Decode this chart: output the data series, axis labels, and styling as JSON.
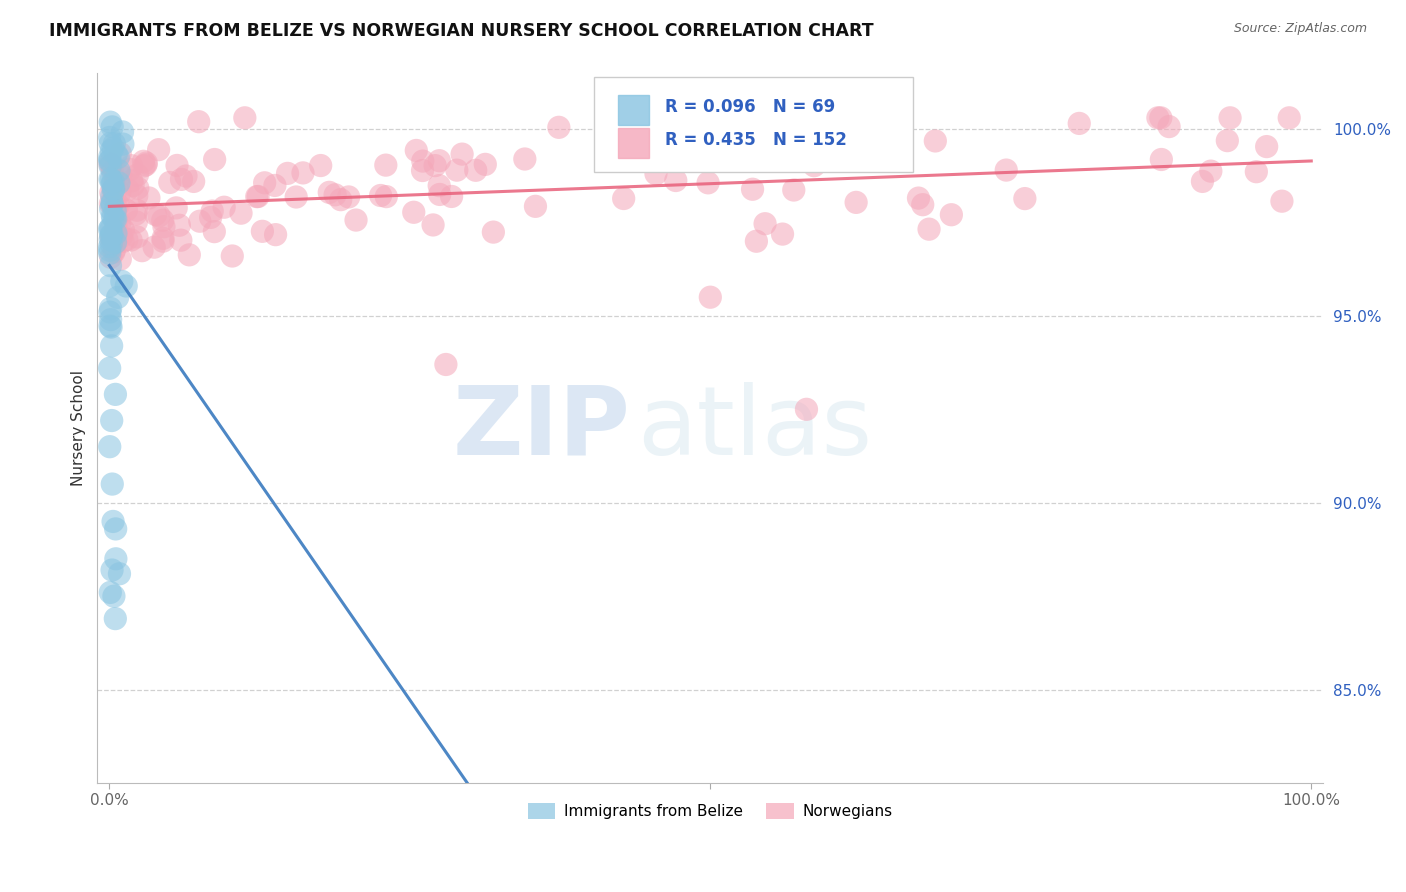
{
  "title": "IMMIGRANTS FROM BELIZE VS NORWEGIAN NURSERY SCHOOL CORRELATION CHART",
  "source": "Source: ZipAtlas.com",
  "ylabel": "Nursery School",
  "watermark_zip": "ZIP",
  "watermark_atlas": "atlas",
  "xlim": [
    -0.01,
    1.01
  ],
  "ylim": [
    0.825,
    1.015
  ],
  "ytick_positions": [
    0.85,
    0.9,
    0.95,
    1.0
  ],
  "ytick_labels": [
    "85.0%",
    "90.0%",
    "95.0%",
    "100.0%"
  ],
  "xtick_positions": [
    0.0,
    0.5,
    1.0
  ],
  "xtick_labels": [
    "0.0%",
    "",
    "100.0%"
  ],
  "legend_R_blue": "R = 0.096",
  "legend_N_blue": "N = 69",
  "legend_R_pink": "R = 0.435",
  "legend_N_pink": "N = 152",
  "blue_color": "#89c4e1",
  "pink_color": "#f4a7b9",
  "blue_line_color": "#3a7abf",
  "pink_line_color": "#e8607a",
  "legend_text_color": "#3060c0",
  "background_color": "#ffffff",
  "grid_color": "#cccccc",
  "title_fontsize": 12.5,
  "axis_label_fontsize": 11,
  "tick_fontsize": 11,
  "source_fontsize": 9,
  "watermark_fontsize_zip": 62,
  "watermark_fontsize_atlas": 62
}
